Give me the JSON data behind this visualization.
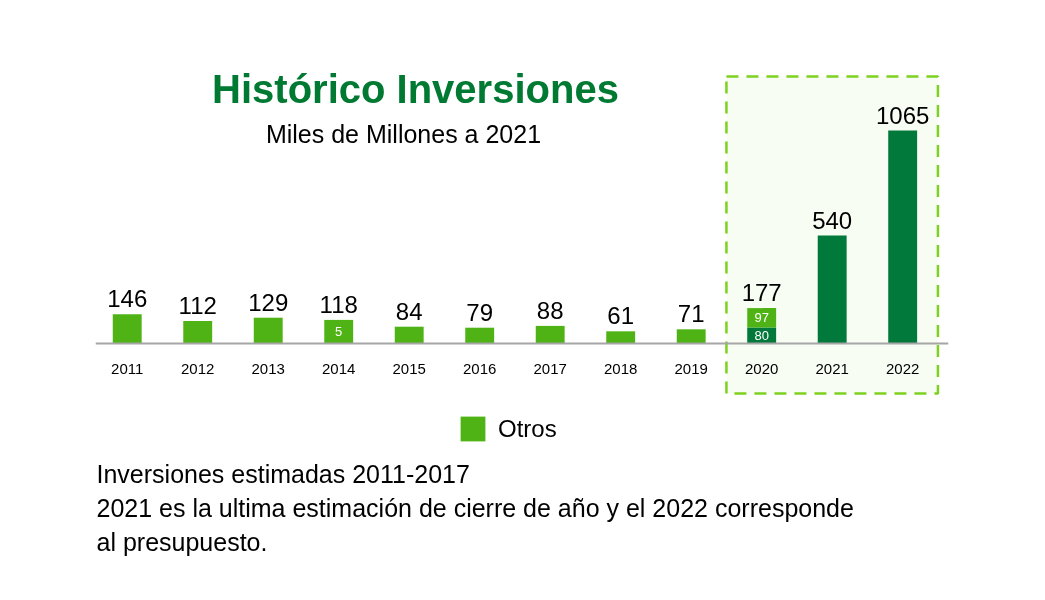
{
  "chart_data": {
    "type": "bar",
    "title": "Histórico Inversiones",
    "subtitle": "Miles de Millones a 2021",
    "categories": [
      "2011",
      "2012",
      "2013",
      "2014",
      "2015",
      "2016",
      "2017",
      "2018",
      "2019",
      "2020",
      "2021",
      "2022"
    ],
    "stacked": true,
    "series": [
      {
        "color": "#00793a",
        "values": [
          null,
          null,
          null,
          null,
          null,
          null,
          null,
          null,
          null,
          80,
          540,
          1065
        ],
        "value_labels": [
          null,
          null,
          null,
          null,
          null,
          null,
          null,
          null,
          null,
          "80",
          null,
          null
        ]
      },
      {
        "name": "Otros",
        "color": "#4fb316",
        "values": [
          146,
          112,
          129,
          118,
          84,
          79,
          88,
          61,
          71,
          97,
          null,
          null
        ],
        "value_labels": [
          null,
          null,
          null,
          null,
          null,
          null,
          null,
          null,
          null,
          "97",
          null,
          null
        ]
      }
    ],
    "totals": [
      "146",
      "112",
      "129",
      "118",
      "84",
      "79",
      "88",
      "61",
      "71",
      "177",
      "540",
      "1065"
    ],
    "bands": [
      {
        "axis": "x",
        "from": "2020",
        "to": "2022",
        "color": "#7dd11f"
      }
    ],
    "annotations": [
      {
        "text": "5",
        "x": "2014",
        "y": 118
      },
      "Inversiones estimadas 2011-2017",
      "2021 es la ultima estimación de cierre de año y el 2022 corresponde al presupuesto."
    ],
    "legend": "bottom",
    "grid": false,
    "tick_labels": "x"
  }
}
